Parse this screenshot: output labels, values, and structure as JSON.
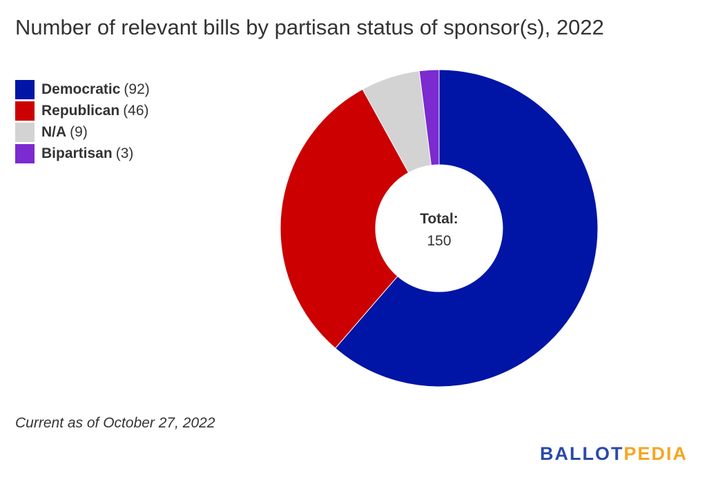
{
  "chart_data": {
    "type": "pie",
    "donut": true,
    "title": "Number of relevant bills by partisan status of sponsor(s), 2022",
    "slices": [
      {
        "name": "Democratic",
        "value": 92,
        "color": "#0015a5"
      },
      {
        "name": "Republican",
        "value": 46,
        "color": "#cc0000"
      },
      {
        "name": "N/A",
        "value": 9,
        "color": "#d3d3d3"
      },
      {
        "name": "Bipartisan",
        "value": 3,
        "color": "#7b2bd0"
      }
    ],
    "center_label": "Total:",
    "center_value": "150",
    "legend_placement": "top-left"
  },
  "note": "Current as of October 27, 2022",
  "logo": {
    "part1": "BALLOT",
    "part2": "PEDIA"
  }
}
